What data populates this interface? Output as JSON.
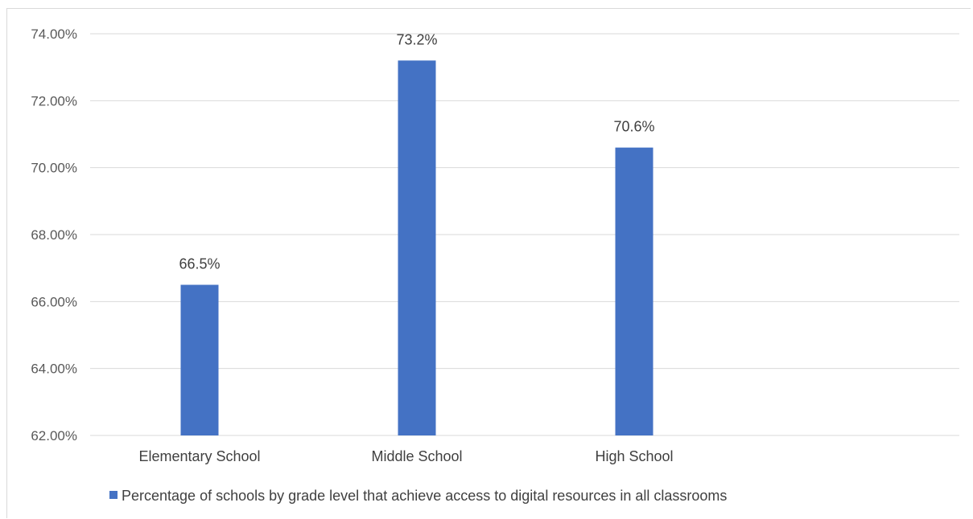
{
  "chart_data": {
    "type": "bar",
    "categories": [
      "Elementary School",
      "Middle School",
      "High School"
    ],
    "series": [
      {
        "name": "Percentage of schools by grade level that achieve access to digital resources in all classrooms",
        "values": [
          66.5,
          73.2,
          70.6
        ],
        "data_labels": [
          "66.5%",
          "73.2%",
          "70.6%"
        ],
        "color": "#4472c4"
      }
    ],
    "ylim": [
      62,
      74
    ],
    "yticks": [
      62,
      64,
      66,
      68,
      70,
      72,
      74
    ],
    "ytick_labels": [
      "62.00%",
      "64.00%",
      "66.00%",
      "68.00%",
      "70.00%",
      "72.00%",
      "74.00%"
    ],
    "grid": true,
    "legend_position": "bottom"
  }
}
